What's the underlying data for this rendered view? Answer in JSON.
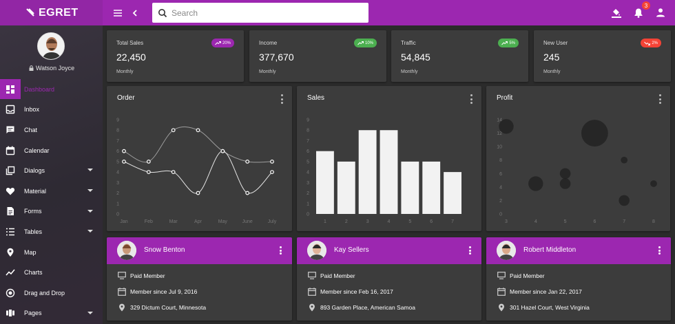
{
  "brand": {
    "name": "EGRET"
  },
  "search": {
    "placeholder": "Search"
  },
  "topbar": {
    "notification_count": "3"
  },
  "profile": {
    "name": "Watson Joyce"
  },
  "sidebar": {
    "items": [
      {
        "label": "Dashboard",
        "icon": "dashboard-icon",
        "active": true,
        "has_children": false
      },
      {
        "label": "Inbox",
        "icon": "inbox-icon",
        "has_children": false
      },
      {
        "label": "Chat",
        "icon": "chat-icon",
        "has_children": false
      },
      {
        "label": "Calendar",
        "icon": "calendar-icon",
        "has_children": false
      },
      {
        "label": "Dialogs",
        "icon": "dialogs-icon",
        "has_children": true
      },
      {
        "label": "Material",
        "icon": "heart-icon",
        "has_children": true
      },
      {
        "label": "Forms",
        "icon": "forms-icon",
        "has_children": true
      },
      {
        "label": "Tables",
        "icon": "tables-icon",
        "has_children": true
      },
      {
        "label": "Map",
        "icon": "map-pin-icon",
        "has_children": false
      },
      {
        "label": "Charts",
        "icon": "charts-icon",
        "has_children": false
      },
      {
        "label": "Drag and Drop",
        "icon": "drag-drop-icon",
        "has_children": false
      },
      {
        "label": "Pages",
        "icon": "pages-icon",
        "has_children": true
      }
    ]
  },
  "stats": [
    {
      "title": "Total Sales",
      "value": "22,450",
      "sub": "Monthly",
      "change": "20%",
      "trend": "up",
      "color": "#9c27b0"
    },
    {
      "title": "Income",
      "value": "377,670",
      "sub": "Monthly",
      "change": "10%",
      "trend": "up",
      "color": "#4caf50"
    },
    {
      "title": "Traffic",
      "value": "54,845",
      "sub": "Monthly",
      "change": "5%",
      "trend": "up",
      "color": "#4caf50"
    },
    {
      "title": "New User",
      "value": "245",
      "sub": "Monthly",
      "change": "2%",
      "trend": "down",
      "color": "#f44336"
    }
  ],
  "charts": {
    "order_title": "Order",
    "sales_title": "Sales",
    "profit_title": "Profit"
  },
  "chart_data": [
    {
      "type": "line",
      "title": "Order",
      "categories": [
        "Jan",
        "Feb",
        "Mar",
        "Apr",
        "May",
        "June",
        "July"
      ],
      "ylim": [
        0,
        9
      ],
      "yticks": [
        "0",
        "1",
        "2",
        "3",
        "4",
        "5",
        "6",
        "7",
        "8",
        "9"
      ],
      "series": [
        {
          "values": [
            6,
            5,
            8,
            8,
            6,
            5,
            5
          ]
        },
        {
          "values": [
            5,
            4,
            4,
            2,
            6,
            2,
            4
          ]
        }
      ]
    },
    {
      "type": "bar",
      "title": "Sales",
      "categories": [
        "1",
        "2",
        "3",
        "4",
        "5",
        "6",
        "7"
      ],
      "values": [
        6,
        5,
        8,
        8,
        5,
        5,
        4
      ],
      "ylim": [
        0,
        9
      ],
      "yticks": [
        "0",
        "1",
        "2",
        "3",
        "4",
        "5",
        "6",
        "7",
        "8",
        "9"
      ]
    },
    {
      "type": "scatter",
      "title": "Profit",
      "ylim": [
        0,
        14
      ],
      "yticks": [
        "0",
        "2",
        "4",
        "6",
        "8",
        "10",
        "12",
        "14"
      ],
      "xlim": [
        3,
        8
      ],
      "xticks": [
        "3",
        "4",
        "5",
        "6",
        "7",
        "8"
      ],
      "points": [
        {
          "x": 3,
          "y": 13,
          "size": 3
        },
        {
          "x": 5,
          "y": 6,
          "size": 2
        },
        {
          "x": 5,
          "y": 4.5,
          "size": 2
        },
        {
          "x": 4,
          "y": 4.5,
          "size": 3
        },
        {
          "x": 6,
          "y": 12,
          "size": 6
        },
        {
          "x": 7,
          "y": 8,
          "size": 1
        },
        {
          "x": 7,
          "y": 2,
          "size": 2
        },
        {
          "x": 8,
          "y": 4.5,
          "size": 1
        }
      ]
    }
  ],
  "members": [
    {
      "name": "Snow Benton",
      "type": "Paid Member",
      "since": "Member since Jul 9, 2016",
      "address": "329 Dictum Court, Minnesota"
    },
    {
      "name": "Kay Sellers",
      "type": "Paid Member",
      "since": "Member since Feb 16, 2017",
      "address": "893 Garden Place, American Samoa"
    },
    {
      "name": "Robert Middleton",
      "type": "Paid Member",
      "since": "Member since Jan 22, 2017",
      "address": "301 Hazel Court, West Virginia"
    }
  ]
}
